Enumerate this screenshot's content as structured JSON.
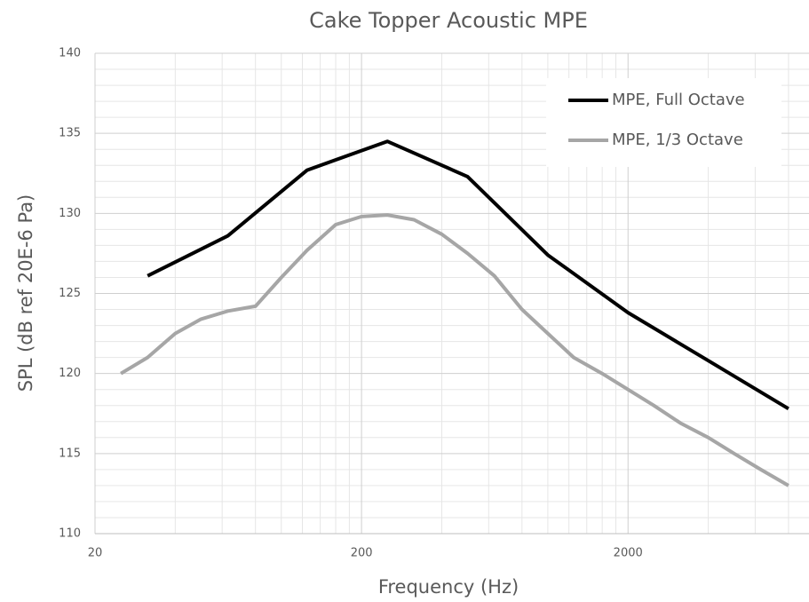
{
  "chart_data": {
    "type": "line",
    "title": "Cake Topper Acoustic MPE",
    "x_label": "Frequency (Hz)",
    "y_label": "SPL (dB ref 20E-6 Pa)",
    "xscale": "log",
    "xlim": [
      20,
      10000
    ],
    "xticks": [
      20,
      200,
      2000
    ],
    "ylim": [
      110,
      140
    ],
    "yticks": [
      110,
      115,
      120,
      125,
      130,
      135,
      140
    ],
    "grid": true,
    "minor_grid": true,
    "legend": "upper right",
    "series": [
      {
        "name": "MPE, Full Octave",
        "color": "#000000",
        "x": [
          31.5,
          63,
          125,
          250,
          500,
          1000,
          2000,
          4000,
          8000
        ],
        "values": [
          126.1,
          128.6,
          132.7,
          134.5,
          132.3,
          127.4,
          123.8,
          120.8,
          117.8
        ]
      },
      {
        "name": "MPE, 1/3 Octave",
        "color": "#a6a6a6",
        "x": [
          25,
          31.5,
          40,
          50,
          63,
          80,
          100,
          125,
          160,
          200,
          250,
          315,
          400,
          500,
          630,
          800,
          1000,
          1250,
          1600,
          2000,
          2500,
          3150,
          4000,
          5000,
          6300,
          8000
        ],
        "values": [
          120.0,
          121.0,
          122.5,
          123.4,
          123.9,
          124.2,
          126.0,
          127.7,
          129.3,
          129.8,
          129.9,
          129.6,
          128.7,
          127.5,
          126.1,
          124.0,
          122.5,
          121.0,
          120.0,
          119.0,
          118.0,
          116.9,
          116.0,
          115.0,
          114.0,
          113.0
        ]
      }
    ]
  }
}
